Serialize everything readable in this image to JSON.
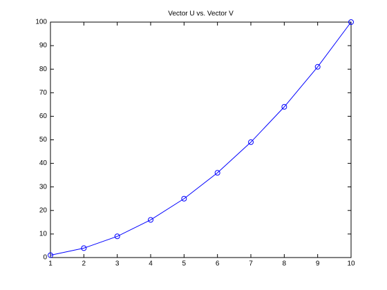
{
  "chart_data": {
    "type": "line",
    "title": "Vector U vs. Vector V",
    "x": [
      1,
      2,
      3,
      4,
      5,
      6,
      7,
      8,
      9,
      10
    ],
    "values": [
      1,
      4,
      9,
      16,
      25,
      36,
      49,
      64,
      81,
      100
    ],
    "color": "#0000ff",
    "xlim": [
      1,
      10
    ],
    "xticks": [
      1,
      2,
      3,
      4,
      5,
      6,
      7,
      8,
      9,
      10
    ],
    "ylim": [
      0,
      100
    ],
    "yticks": [
      0,
      10,
      20,
      30,
      40,
      50,
      60,
      70,
      80,
      90,
      100
    ],
    "grid": false
  }
}
